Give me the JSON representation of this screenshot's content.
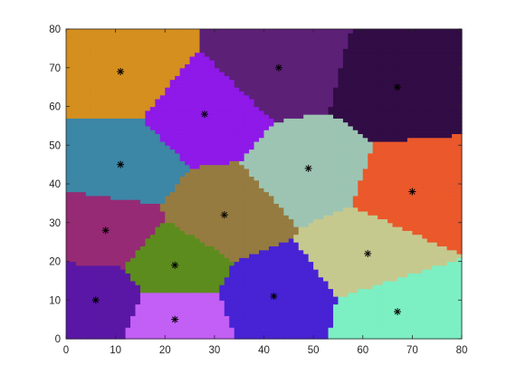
{
  "chart_data": {
    "type": "scatter",
    "title": "",
    "xlabel": "",
    "ylabel": "",
    "xlim": [
      0,
      80
    ],
    "ylim": [
      0,
      80
    ],
    "xticks": [
      0,
      10,
      20,
      30,
      40,
      50,
      60,
      70,
      80
    ],
    "yticks": [
      0,
      10,
      20,
      30,
      40,
      50,
      60,
      70,
      80
    ],
    "xtick_labels": [
      "0",
      "10",
      "20",
      "30",
      "40",
      "50",
      "60",
      "70",
      "80"
    ],
    "ytick_labels": [
      "0",
      "10",
      "20",
      "30",
      "40",
      "50",
      "60",
      "70",
      "80"
    ],
    "grid": false,
    "legend": "none",
    "marker": "*",
    "background_region_note": "",
    "regions": [
      {
        "center": [
          11,
          69
        ],
        "color": "#d58f1f"
      },
      {
        "center": [
          28,
          58
        ],
        "color": "#8e19e8"
      },
      {
        "center": [
          43,
          70
        ],
        "color": "#5c2077"
      },
      {
        "center": [
          67,
          65
        ],
        "color": "#310c45"
      },
      {
        "center": [
          11,
          45
        ],
        "color": "#3c86a6"
      },
      {
        "center": [
          49,
          44
        ],
        "color": "#9dc4b2"
      },
      {
        "center": [
          70,
          38
        ],
        "color": "#ea582b"
      },
      {
        "center": [
          8,
          28
        ],
        "color": "#962a75"
      },
      {
        "center": [
          32,
          32
        ],
        "color": "#957b40"
      },
      {
        "center": [
          61,
          22
        ],
        "color": "#c6c98e"
      },
      {
        "center": [
          22,
          19
        ],
        "color": "#5c8c1d"
      },
      {
        "center": [
          6,
          10
        ],
        "color": "#5a17a6"
      },
      {
        "center": [
          42,
          11
        ],
        "color": "#4723d4"
      },
      {
        "center": [
          22,
          5
        ],
        "color": "#c25ff5"
      },
      {
        "center": [
          67,
          7
        ],
        "color": "#7cefc3"
      }
    ]
  }
}
